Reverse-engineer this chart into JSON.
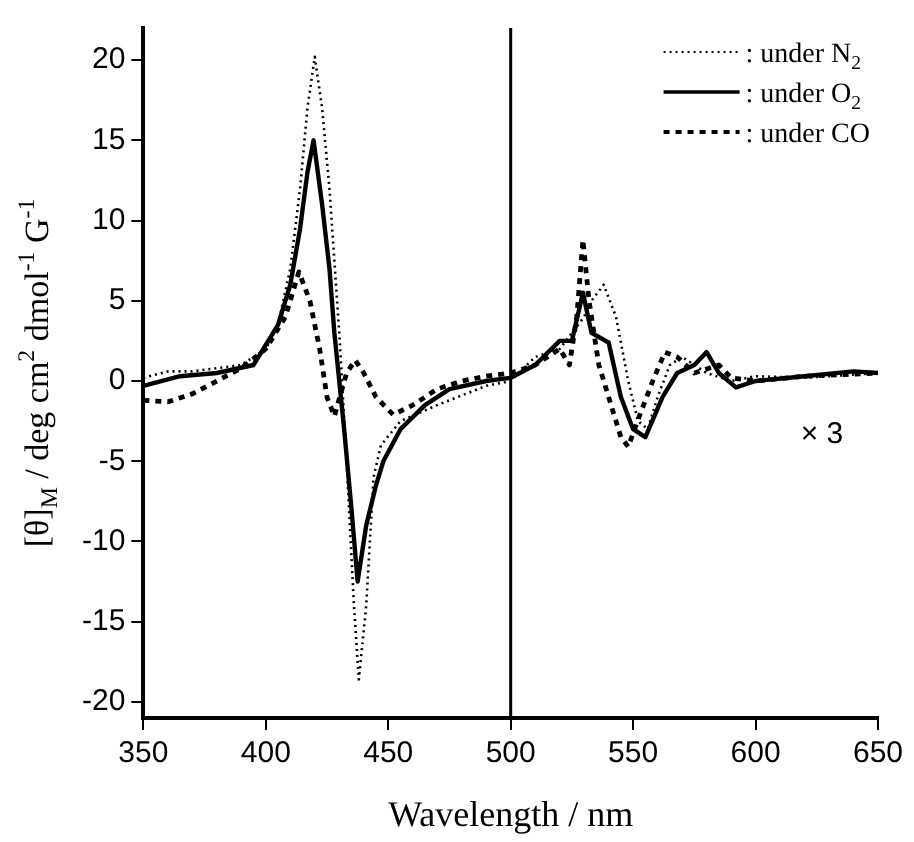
{
  "chart_data": {
    "type": "line",
    "xlabel": "Wavelength / nm",
    "ylabel": "[θ]$_{M}$ / deg cm$^{2}$ dmol$^{-1}$ G$^{-1}$",
    "xlim": [
      350,
      650
    ],
    "xticks": [
      350,
      400,
      450,
      500,
      550,
      600,
      650
    ],
    "ylim": [
      -21,
      22
    ],
    "yticks": [
      -20,
      -15,
      -10,
      -5,
      0,
      5,
      10,
      15,
      20
    ],
    "grid": false,
    "legend": "top right",
    "marker": "none",
    "ref_lines": [
      {
        "axis": "x",
        "value": 500,
        "color": "#000000",
        "line_style": "solid"
      }
    ],
    "annotations": [
      "× 3"
    ],
    "series": [
      {
        "name": ": under N$_{2}$",
        "color": "#000000",
        "line_style": "dotted",
        "x": [
          350,
          360,
          370,
          380,
          390,
          400,
          405,
          410,
          414,
          417,
          420,
          423,
          426,
          430,
          433,
          436,
          438,
          441,
          444,
          447,
          455,
          470,
          490,
          500,
          510,
          520,
          525,
          530,
          533,
          538,
          543,
          548,
          552,
          556,
          560,
          565,
          570,
          575,
          580,
          590,
          600,
          620,
          650
        ],
        "values": [
          0.2,
          0.6,
          0.6,
          0.8,
          1,
          2,
          3.5,
          7,
          12,
          17,
          20.2,
          17,
          12,
          3,
          -5,
          -14,
          -18.6,
          -14,
          -6,
          -4,
          -2.5,
          -1.5,
          -0.3,
          0,
          1.5,
          2,
          3,
          4,
          5,
          6,
          4,
          0,
          -2.5,
          -3,
          -1,
          1,
          1.5,
          1,
          0.5,
          0,
          0.3,
          0.2,
          0.5
        ]
      },
      {
        "name": ": under O$_{2}$",
        "color": "#000000",
        "line_style": "solid",
        "x": [
          350,
          365,
          380,
          395,
          405,
          410,
          414,
          417,
          419.5,
          423,
          426,
          428,
          430,
          432,
          435,
          437.5,
          441,
          445,
          448,
          455,
          465,
          475,
          490,
          500,
          510,
          520,
          525,
          529.5,
          533,
          540,
          545,
          550,
          555,
          562,
          568,
          575,
          580,
          585,
          592,
          600,
          620,
          640,
          650
        ],
        "values": [
          -0.3,
          0.3,
          0.5,
          1,
          3.5,
          6,
          9.5,
          13,
          15,
          11,
          7,
          3,
          0,
          -3,
          -8,
          -12.5,
          -9,
          -6.5,
          -5,
          -3,
          -1.5,
          -0.5,
          0,
          0.2,
          1,
          2.5,
          2.5,
          5.5,
          3,
          2.4,
          -1,
          -3,
          -3.5,
          -1,
          0.5,
          1,
          1.8,
          0.5,
          -0.4,
          0,
          0.3,
          0.6,
          0.5
        ]
      },
      {
        "name": ": under CO",
        "color": "#000000",
        "line_style": "dashed",
        "x": [
          350,
          360,
          370,
          380,
          390,
          400,
          408,
          413.5,
          418,
          422,
          425,
          428,
          433,
          436.5,
          440,
          445,
          452,
          460,
          470,
          480,
          490,
          500,
          510,
          520,
          524,
          527,
          529.5,
          532,
          536,
          540,
          545,
          548,
          553,
          558,
          563,
          568,
          575,
          585,
          590,
          600,
          620,
          650
        ],
        "values": [
          -1.2,
          -1.3,
          -0.8,
          0,
          0.8,
          2,
          4,
          6.8,
          5,
          2,
          -1,
          -2.2,
          0.5,
          1.3,
          0.5,
          -1,
          -2.1,
          -1.5,
          -0.5,
          0,
          0.3,
          0.5,
          1,
          2,
          1,
          4,
          8.8,
          5,
          1,
          -1,
          -3.5,
          -4.1,
          -2,
          0,
          1.8,
          1.5,
          0.5,
          1,
          0.2,
          0,
          0.3,
          0.5
        ]
      }
    ]
  }
}
